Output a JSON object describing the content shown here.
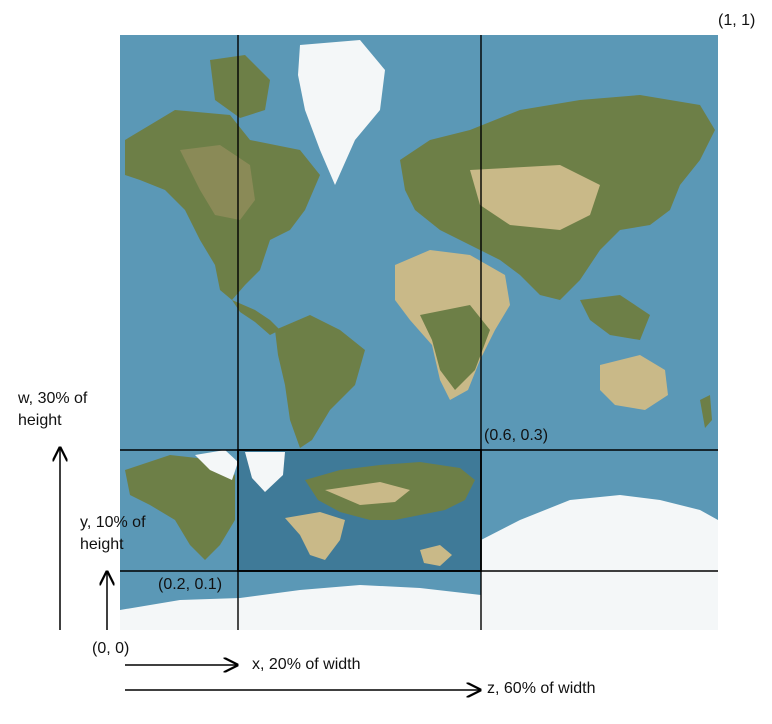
{
  "labels": {
    "top_right_corner": "(1, 1)",
    "point_zw": "(0.6, 0.3)",
    "point_xy": "(0.2, 0.1)",
    "origin": "(0, 0)",
    "w_label": "w, 30% of height",
    "y_label": "y, 10% of height",
    "x_label": "x, 20% of width",
    "z_label": "z, 60% of width"
  },
  "colors": {
    "ocean": "#5b98b6",
    "land_green": "#6d7f47",
    "land_olive": "#8a8a57",
    "desert": "#c9b988",
    "ice": "#f4f7f8",
    "line": "#000000"
  },
  "icons": [
    "map-image",
    "crop-highlight",
    "arrow-icon"
  ]
}
